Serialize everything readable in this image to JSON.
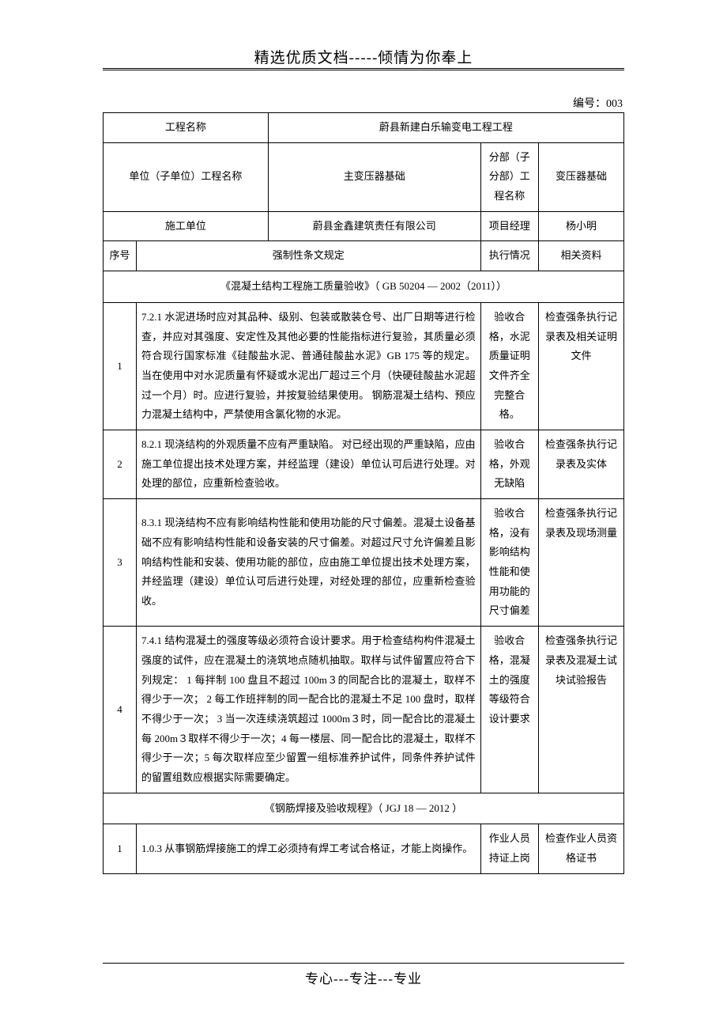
{
  "header_text": "精选优质文档-----倾情为你奉上",
  "footer_text": "专心---专注---专业",
  "doc_number": "编号：003",
  "info": {
    "project_name_label": "工程名称",
    "project_name_value": "蔚县新建白乐输变电工程工程",
    "unit_project_label": "单位（子单位）工程名称",
    "unit_project_value": "主变压器基础",
    "sub_project_label": "分部（子分部）工程名称",
    "sub_project_value": "变压器基础",
    "construction_unit_label": "施工单位",
    "construction_unit_value": "蔚县金鑫建筑责任有限公司",
    "pm_label": "项目经理",
    "pm_value": "杨小明"
  },
  "cols": {
    "seq": "序号",
    "rule": "强制性条文规定",
    "exec": "执行情况",
    "doc": "相关资料"
  },
  "section1_title": "《混凝土结构工程施工质量验收》（ GB 50204 — 2002（2011））",
  "section2_title": "《钢筋焊接及验收规程》（ JGJ 18 — 2012 ）",
  "rows_s1": [
    {
      "seq": "1",
      "rule": "7.2.1 水泥进场时应对其品种、级别、包装或散装仓号、出厂日期等进行检查，并应对其强度、安定性及其他必要的性能指标进行复验，其质量必须符合现行国家标准《硅酸盐水泥、普通硅酸盐水泥》GB 175 等的规定。 当在使用中对水泥质量有怀疑或水泥出厂超过三个月（快硬硅酸盐水泥超过一个月）时。应进行复验，并按复验结果使用。 钢筋混凝土结构、预应力混凝土结构中，严禁使用含氯化物的水泥。",
      "exec": "验收合格，水泥质量证明文件齐全完整合格。",
      "doc": "检查强条执行记录表及相关证明文件"
    },
    {
      "seq": "2",
      "rule": "8.2.1 现浇结构的外观质量不应有严重缺陷。 对已经出现的严重缺陷，应由施工单位提出技术处理方案，并经监理（建设）单位认可后进行处理。对处理的部位，应重新检查验收。",
      "exec": "验收合格，外观无缺陷",
      "doc": "检查强条执行记录表及实体"
    },
    {
      "seq": "3",
      "rule": "8.3.1 现浇结构不应有影响结构性能和使用功能的尺寸偏差。混凝土设备基础不应有影响结构性能和设备安装的尺寸偏差。对超过尺寸允许偏差且影响结构性能和安装、使用功能的部位，应由施工单位提出技术处理方案，并经监理（建设）单位认可后进行处理，对经处理的部位，应重新检查验收。",
      "exec": "验收合格，没有影响结构性能和使用功能的尺寸偏差",
      "doc": "检查强条执行记录表及现场测量"
    },
    {
      "seq": "4",
      "rule": "7.4.1 结构混凝土的强度等级必须符合设计要求。用于检查结构构件混凝土强度的试件，应在混凝土的浇筑地点随机抽取。取样与试件留置应符合下列规定： 1 每拌制 100 盘且不超过 100m３的同配合比的混凝土，取样不得少于一次； 2 每工作班拌制的同一配合比的混凝土不足 100 盘时，取样不得少于一次； 3 当一次连续浇筑超过 1000m３时，同一配合比的混凝土每 200m３取样不得少于一次；4 每一楼层、同一配合比的混凝土，取样不得少于一次；5 每次取样应至少留置一组标准养护试件，同条件养护试件的留置组数应根据实际需要确定。",
      "exec": "验收合格，混凝土的强度等级符合设计要求",
      "doc": "检查强条执行记录表及混凝土试块试验报告"
    }
  ],
  "rows_s2": [
    {
      "seq": "1",
      "rule": "1.0.3 从事钢筋焊接施工的焊工必须持有焊工考试合格证，才能上岗操作。",
      "exec": "作业人员持证上岗",
      "doc": "检查作业人员资格证书"
    }
  ]
}
